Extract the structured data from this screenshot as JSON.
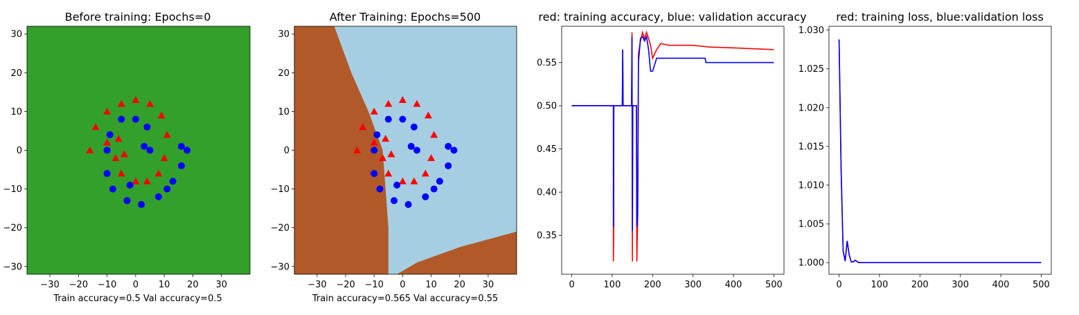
{
  "colors": {
    "red": "#ff0000",
    "blue": "#0000ff",
    "green_region": "#33a02c",
    "brown_region": "#b15928",
    "lightblue_region": "#a6cee3"
  },
  "chart_data": [
    {
      "type": "scatter",
      "title": "Before training: Epochs=0",
      "xlabel": "Train accuracy=0.5 Val accuracy=0.5",
      "ylabel": "",
      "xlim": [
        -38,
        40
      ],
      "ylim": [
        -32,
        32
      ],
      "xticks": [
        -30,
        -20,
        -10,
        0,
        10,
        20,
        30
      ],
      "yticks": [
        -30,
        -20,
        -10,
        0,
        10,
        20,
        30
      ],
      "background": "uniform green decision region",
      "series": [
        {
          "marker": "triangle",
          "color": "red",
          "points": [
            [
              -16,
              0
            ],
            [
              -14,
              6
            ],
            [
              -10,
              10
            ],
            [
              -5,
              12
            ],
            [
              0,
              13
            ],
            [
              5,
              12
            ],
            [
              9,
              9
            ],
            [
              11,
              4
            ],
            [
              10,
              -2
            ],
            [
              8,
              -6
            ],
            [
              4,
              -8
            ],
            [
              0,
              -8
            ],
            [
              -5,
              -6
            ],
            [
              -7,
              -2
            ],
            [
              -6,
              3
            ],
            [
              -4,
              -1
            ],
            [
              -10,
              2
            ]
          ]
        },
        {
          "marker": "circle",
          "color": "blue",
          "points": [
            [
              -5,
              8
            ],
            [
              0,
              8
            ],
            [
              4,
              6
            ],
            [
              3,
              1
            ],
            [
              -10,
              0
            ],
            [
              -10,
              -6
            ],
            [
              -8,
              -10
            ],
            [
              -3,
              -13
            ],
            [
              2,
              -14
            ],
            [
              8,
              -12
            ],
            [
              13,
              -8
            ],
            [
              16,
              -4
            ],
            [
              18,
              0
            ],
            [
              16,
              1
            ],
            [
              -9,
              4
            ],
            [
              5,
              0
            ],
            [
              -2,
              -9
            ],
            [
              11,
              -10
            ]
          ]
        }
      ]
    },
    {
      "type": "scatter",
      "title": "After Training: Epochs=500",
      "xlabel": "Train accuracy=0.565 Val accuracy=0.55",
      "ylabel": "",
      "xlim": [
        -38,
        40
      ],
      "ylim": [
        -32,
        32
      ],
      "xticks": [
        -30,
        -20,
        -10,
        0,
        10,
        20,
        30
      ],
      "yticks": [
        -30,
        -20,
        -10,
        0,
        10,
        20,
        30
      ],
      "background": "brown decision region on left and bottom-right, light blue region elsewhere",
      "series": [
        {
          "marker": "triangle",
          "color": "red",
          "points": [
            [
              -16,
              0
            ],
            [
              -14,
              6
            ],
            [
              -10,
              10
            ],
            [
              -5,
              12
            ],
            [
              0,
              13
            ],
            [
              5,
              12
            ],
            [
              9,
              9
            ],
            [
              11,
              4
            ],
            [
              10,
              -2
            ],
            [
              8,
              -6
            ],
            [
              4,
              -8
            ],
            [
              0,
              -8
            ],
            [
              -5,
              -6
            ],
            [
              -7,
              -2
            ],
            [
              -6,
              3
            ],
            [
              -4,
              -1
            ],
            [
              -10,
              2
            ]
          ]
        },
        {
          "marker": "circle",
          "color": "blue",
          "points": [
            [
              -5,
              8
            ],
            [
              0,
              8
            ],
            [
              4,
              6
            ],
            [
              3,
              1
            ],
            [
              -10,
              0
            ],
            [
              -10,
              -6
            ],
            [
              -8,
              -10
            ],
            [
              -3,
              -13
            ],
            [
              2,
              -14
            ],
            [
              8,
              -12
            ],
            [
              13,
              -8
            ],
            [
              16,
              -4
            ],
            [
              18,
              0
            ],
            [
              16,
              1
            ],
            [
              -9,
              4
            ],
            [
              5,
              0
            ],
            [
              -2,
              -9
            ],
            [
              11,
              -10
            ]
          ]
        }
      ]
    },
    {
      "type": "line",
      "title": "red: training accuracy, blue: validation accuracy",
      "xlabel": "",
      "ylabel": "",
      "xlim": [
        -25,
        525
      ],
      "ylim": [
        0.305,
        0.592
      ],
      "xticks": [
        0,
        100,
        200,
        300,
        400,
        500
      ],
      "yticks": [
        0.35,
        0.4,
        0.45,
        0.5,
        0.55
      ],
      "series": [
        {
          "color": "red",
          "x": [
            0,
            103,
            103,
            104,
            104,
            125,
            126,
            127,
            148,
            149,
            150,
            151,
            160,
            161,
            163,
            165,
            170,
            175,
            180,
            185,
            190,
            195,
            200,
            210,
            220,
            240,
            260,
            300,
            340,
            400,
            450,
            500
          ],
          "y": [
            0.5,
            0.5,
            0.32,
            0.36,
            0.5,
            0.5,
            0.565,
            0.5,
            0.5,
            0.585,
            0.32,
            0.5,
            0.5,
            0.32,
            0.37,
            0.56,
            0.575,
            0.585,
            0.578,
            0.585,
            0.578,
            0.57,
            0.555,
            0.565,
            0.572,
            0.57,
            0.57,
            0.57,
            0.568,
            0.567,
            0.566,
            0.565
          ]
        },
        {
          "color": "blue",
          "x": [
            0,
            103,
            103,
            104,
            104,
            125,
            126,
            127,
            148,
            149,
            150,
            151,
            160,
            161,
            163,
            165,
            170,
            175,
            180,
            185,
            190,
            195,
            200,
            210,
            220,
            240,
            260,
            300,
            330,
            332,
            400,
            500
          ],
          "y": [
            0.5,
            0.5,
            0.36,
            0.5,
            0.5,
            0.5,
            0.565,
            0.5,
            0.5,
            0.58,
            0.355,
            0.5,
            0.5,
            0.36,
            0.37,
            0.55,
            0.578,
            0.58,
            0.575,
            0.58,
            0.565,
            0.54,
            0.54,
            0.555,
            0.555,
            0.555,
            0.555,
            0.555,
            0.555,
            0.55,
            0.55,
            0.55
          ]
        }
      ]
    },
    {
      "type": "line",
      "title": "red: training loss, blue:validation loss",
      "xlabel": "",
      "ylabel": "",
      "xlim": [
        -25,
        525
      ],
      "ylim": [
        0.9985,
        1.0305
      ],
      "xticks": [
        0,
        100,
        200,
        300,
        400,
        500
      ],
      "yticks": [
        1.0,
        1.005,
        1.01,
        1.015,
        1.02,
        1.025,
        1.03
      ],
      "yformat": 3,
      "series": [
        {
          "color": "red",
          "x": [
            0,
            5,
            10,
            15,
            20,
            25,
            30,
            35,
            40,
            45,
            50,
            60,
            80,
            100,
            200,
            300,
            400,
            500
          ],
          "y": [
            1.0288,
            1.012,
            1.0015,
            1.0002,
            1.0028,
            1.001,
            1.0001,
            1.0001,
            1.0003,
            1.0001,
            1.0,
            1.0,
            1.0,
            1.0,
            1.0,
            1.0,
            1.0,
            1.0
          ]
        },
        {
          "color": "blue",
          "x": [
            0,
            5,
            10,
            15,
            20,
            25,
            30,
            35,
            40,
            45,
            50,
            60,
            80,
            100,
            200,
            300,
            400,
            500
          ],
          "y": [
            1.0288,
            1.012,
            1.0015,
            1.0002,
            1.0028,
            1.001,
            1.0001,
            1.0001,
            1.0003,
            1.0001,
            1.0,
            1.0,
            1.0,
            1.0,
            1.0,
            1.0,
            1.0,
            1.0
          ]
        }
      ]
    }
  ]
}
